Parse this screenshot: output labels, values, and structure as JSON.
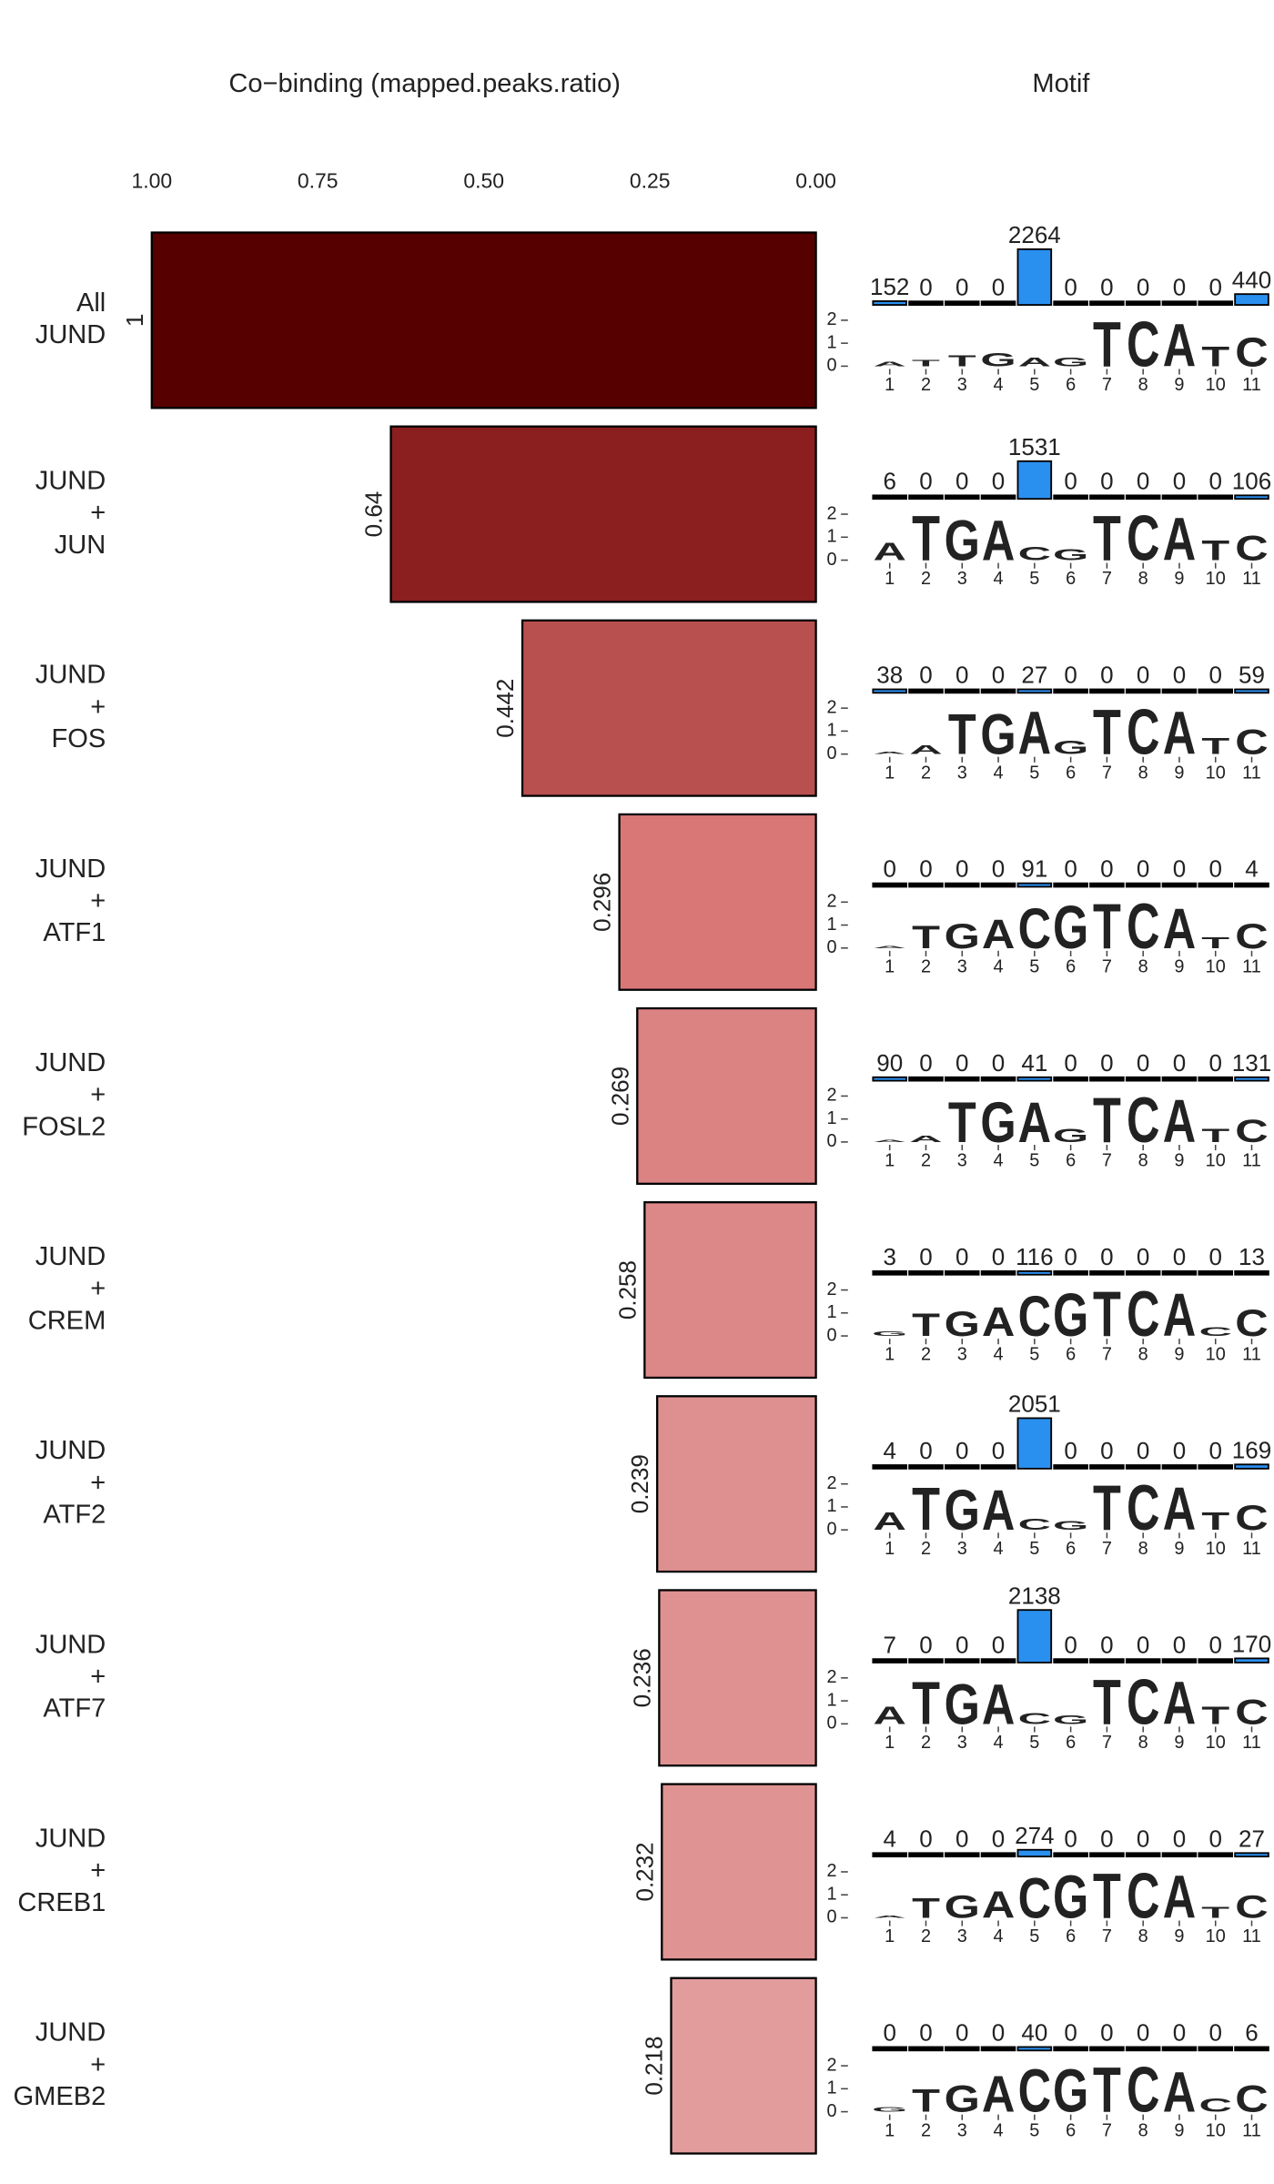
{
  "chart_data": [
    {
      "type": "bar",
      "title": "Co−binding (mapped.peaks.ratio)",
      "categories": [
        [
          "All",
          "JUND"
        ],
        [
          "JUND",
          "+",
          "JUN"
        ],
        [
          "JUND",
          "+",
          "FOS"
        ],
        [
          "JUND",
          "+",
          "ATF1"
        ],
        [
          "JUND",
          "+",
          "FOSL2"
        ],
        [
          "JUND",
          "+",
          "CREM"
        ],
        [
          "JUND",
          "+",
          "ATF2"
        ],
        [
          "JUND",
          "+",
          "ATF7"
        ],
        [
          "JUND",
          "+",
          "CREB1"
        ],
        [
          "JUND",
          "+",
          "GMEB2"
        ]
      ],
      "values": [
        1,
        0.64,
        0.442,
        0.296,
        0.269,
        0.258,
        0.239,
        0.236,
        0.232,
        0.218
      ],
      "colors": [
        "#560000",
        "#8b1e1e",
        "#b85050",
        "#d97777",
        "#db8282",
        "#dd8888",
        "#de9090",
        "#df9191",
        "#df9393",
        "#e29c9c"
      ],
      "xlim": [
        1,
        0
      ],
      "xticks": [
        {
          "value": 1,
          "label": "1.00"
        },
        {
          "value": 0.75,
          "label": "0.75"
        },
        {
          "value": 0.5,
          "label": "0.50"
        },
        {
          "value": 0.25,
          "label": "0.25"
        },
        {
          "value": 0,
          "label": "0.00"
        }
      ]
    },
    {
      "type": "motif",
      "title": "Motif",
      "positions": [
        1,
        2,
        3,
        4,
        5,
        6,
        7,
        8,
        9,
        10,
        11
      ],
      "yticks": [
        0,
        1,
        2
      ],
      "colors": {
        "A": "#109648",
        "C": "#255C99",
        "G": "#F7B32B",
        "T": "#D62839"
      },
      "count_color": "#2a90f0",
      "rows": [
        {
          "counts": [
            152,
            0,
            0,
            0,
            2264,
            0,
            0,
            0,
            0,
            0,
            440
          ],
          "letters": [
            "A",
            "T",
            "T",
            "G",
            "A",
            "G",
            "T",
            "C",
            "A",
            "T",
            "C"
          ],
          "heights": [
            0.2,
            0.3,
            0.5,
            0.6,
            0.4,
            0.4,
            2,
            2,
            1.9,
            0.9,
            1.3
          ]
        },
        {
          "counts": [
            6,
            0,
            0,
            0,
            1531,
            0,
            0,
            0,
            0,
            0,
            106
          ],
          "letters": [
            "A",
            "T",
            "G",
            "A",
            "C",
            "G",
            "T",
            "C",
            "A",
            "T",
            "C"
          ],
          "heights": [
            0.8,
            2,
            1.8,
            1.8,
            0.6,
            0.5,
            2,
            2,
            1.9,
            0.9,
            1.1
          ]
        },
        {
          "counts": [
            38,
            0,
            0,
            0,
            27,
            0,
            0,
            0,
            0,
            0,
            59
          ],
          "letters": [
            "A",
            "A",
            "T",
            "G",
            "A",
            "G",
            "T",
            "C",
            "A",
            "T",
            "C"
          ],
          "heights": [
            0.1,
            0.4,
            1.8,
            1.8,
            1.9,
            0.6,
            2,
            2,
            1.9,
            0.7,
            1.1
          ]
        },
        {
          "counts": [
            0,
            0,
            0,
            0,
            91,
            0,
            0,
            0,
            0,
            0,
            4
          ],
          "letters": [
            "A",
            "T",
            "G",
            "A",
            "C",
            "G",
            "T",
            "C",
            "A",
            "T",
            "C"
          ],
          "heights": [
            0.1,
            1,
            1.1,
            1.3,
            1.8,
            1.9,
            2,
            2,
            1.8,
            0.5,
            1.1
          ]
        },
        {
          "counts": [
            90,
            0,
            0,
            0,
            41,
            0,
            0,
            0,
            0,
            0,
            131
          ],
          "letters": [
            "A",
            "A",
            "T",
            "G",
            "A",
            "G",
            "T",
            "C",
            "A",
            "T",
            "C"
          ],
          "heights": [
            0.1,
            0.3,
            1.8,
            1.8,
            1.8,
            0.6,
            2,
            2,
            1.9,
            0.6,
            1
          ]
        },
        {
          "counts": [
            3,
            0,
            0,
            0,
            116,
            0,
            0,
            0,
            0,
            0,
            13
          ],
          "letters": [
            "G",
            "T",
            "G",
            "A",
            "C",
            "G",
            "T",
            "C",
            "A",
            "C",
            "C"
          ],
          "heights": [
            0.2,
            1,
            1.1,
            1.3,
            1.8,
            1.9,
            2,
            2,
            1.9,
            0.4,
            1.2
          ]
        },
        {
          "counts": [
            4,
            0,
            0,
            0,
            2051,
            0,
            0,
            0,
            0,
            0,
            169
          ],
          "letters": [
            "A",
            "T",
            "G",
            "A",
            "C",
            "G",
            "T",
            "C",
            "A",
            "T",
            "C"
          ],
          "heights": [
            0.8,
            1.9,
            1.8,
            1.8,
            0.5,
            0.4,
            2,
            2,
            1.9,
            0.8,
            1.1
          ]
        },
        {
          "counts": [
            7,
            0,
            0,
            0,
            2138,
            0,
            0,
            0,
            0,
            0,
            170
          ],
          "letters": [
            "A",
            "T",
            "G",
            "A",
            "C",
            "G",
            "T",
            "C",
            "A",
            "T",
            "C"
          ],
          "heights": [
            0.8,
            1.9,
            1.8,
            1.8,
            0.5,
            0.4,
            2,
            2,
            1.9,
            0.8,
            1.1
          ]
        },
        {
          "counts": [
            4,
            0,
            0,
            0,
            274,
            0,
            0,
            0,
            0,
            0,
            27
          ],
          "letters": [
            "A",
            "T",
            "G",
            "A",
            "C",
            "G",
            "T",
            "C",
            "A",
            "T",
            "C"
          ],
          "heights": [
            0.1,
            0.9,
            1,
            1.2,
            1.8,
            1.9,
            2,
            2,
            1.9,
            0.5,
            1
          ]
        },
        {
          "counts": [
            0,
            0,
            0,
            0,
            40,
            0,
            0,
            0,
            0,
            0,
            6
          ],
          "letters": [
            "G",
            "T",
            "G",
            "A",
            "C",
            "G",
            "T",
            "C",
            "A",
            "C",
            "C"
          ],
          "heights": [
            0.2,
            1,
            1.2,
            1.6,
            1.9,
            1.9,
            2,
            2,
            1.8,
            0.6,
            1.2
          ]
        }
      ]
    }
  ]
}
